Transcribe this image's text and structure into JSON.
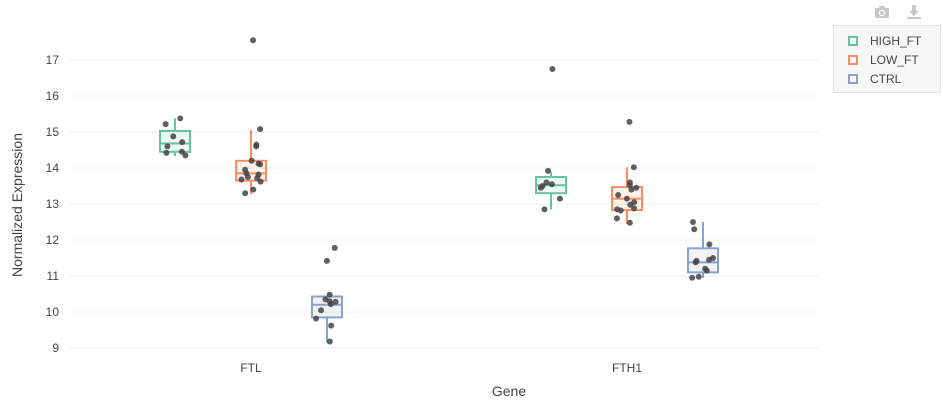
{
  "toolbar": {
    "camera_icon": "camera-icon",
    "download_icon": "download-icon"
  },
  "chart_data": {
    "type": "box",
    "xlabel": "Gene",
    "ylabel": "Normalized Expression",
    "categories": [
      "FTL",
      "FTH1"
    ],
    "ylim": [
      8.7,
      18.0
    ],
    "yticks": [
      9,
      10,
      11,
      12,
      13,
      14,
      15,
      16,
      17
    ],
    "grid": true,
    "legend_position": "top-right",
    "series": [
      {
        "name": "HIGH_FT",
        "color": "#66c2a5",
        "boxes": [
          {
            "category": "FTL",
            "min": 14.33,
            "q1": 14.45,
            "median": 14.68,
            "q3": 15.03,
            "max": 15.38,
            "points": [
              15.38,
              15.22,
              14.88,
              14.72,
              14.6,
              14.45,
              14.42,
              14.35
            ]
          },
          {
            "category": "FTH1",
            "min": 12.85,
            "q1": 13.3,
            "median": 13.52,
            "q3": 13.75,
            "max": 13.9,
            "points": [
              16.75,
              13.92,
              13.6,
              13.55,
              13.5,
              13.45,
              13.15,
              12.85
            ]
          }
        ]
      },
      {
        "name": "LOW_FT",
        "color": "#fc8d62",
        "boxes": [
          {
            "category": "FTL",
            "min": 13.28,
            "q1": 13.65,
            "median": 13.85,
            "q3": 14.2,
            "max": 15.05,
            "points": [
              17.55,
              15.08,
              14.65,
              14.6,
              14.2,
              14.12,
              14.1,
              13.95,
              13.85,
              13.82,
              13.75,
              13.72,
              13.68,
              13.62,
              13.4,
              13.3
            ]
          },
          {
            "category": "FTH1",
            "min": 12.45,
            "q1": 12.83,
            "median": 13.15,
            "q3": 13.47,
            "max": 14.02,
            "points": [
              15.28,
              14.02,
              13.6,
              13.52,
              13.45,
              13.4,
              13.25,
              13.15,
              13.05,
              12.98,
              12.88,
              12.85,
              12.82,
              12.6,
              12.48
            ]
          }
        ]
      },
      {
        "name": "CTRL",
        "color": "#8da0cb",
        "boxes": [
          {
            "category": "FTL",
            "min": 9.15,
            "q1": 9.85,
            "median": 10.2,
            "q3": 10.43,
            "max": 10.43,
            "points": [
              11.78,
              11.42,
              10.48,
              10.35,
              10.3,
              10.28,
              10.22,
              10.05,
              9.82,
              9.62,
              9.18
            ]
          },
          {
            "category": "FTH1",
            "min": 10.95,
            "q1": 11.1,
            "median": 11.38,
            "q3": 11.77,
            "max": 12.5,
            "points": [
              12.5,
              12.3,
              11.88,
              11.5,
              11.45,
              11.42,
              11.38,
              11.2,
              11.15,
              10.98,
              10.95
            ]
          }
        ]
      }
    ]
  }
}
